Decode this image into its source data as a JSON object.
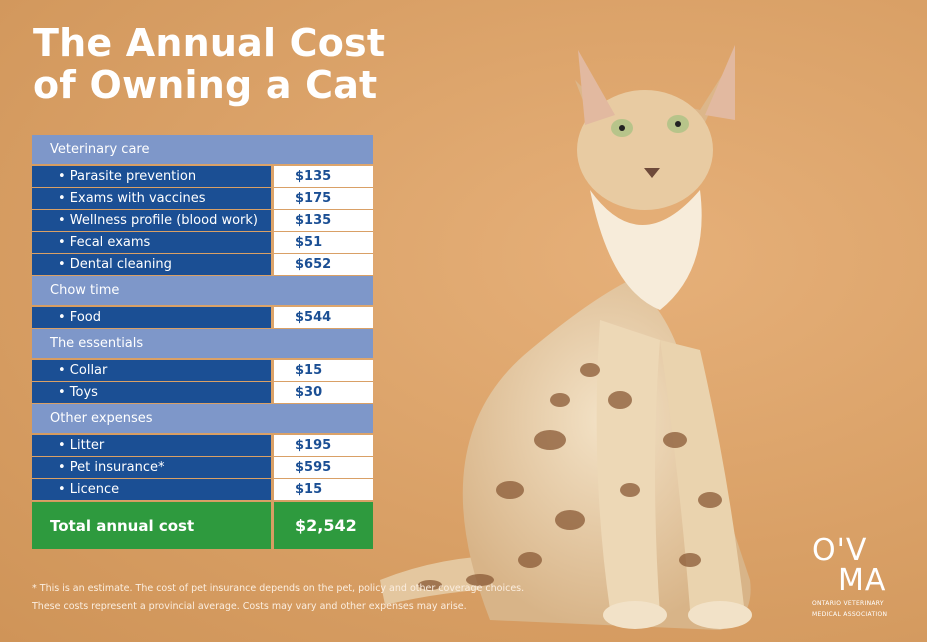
{
  "title": {
    "line1": "The Annual Cost",
    "line2": "of Owning a Cat"
  },
  "sections": [
    {
      "heading": "Veterinary care",
      "items": [
        {
          "label": "• Parasite prevention",
          "value": "$135"
        },
        {
          "label": "• Exams with vaccines",
          "value": "$175"
        },
        {
          "label": "• Wellness profile (blood work)",
          "value": "$135"
        },
        {
          "label": "• Fecal exams",
          "value": "$51"
        },
        {
          "label": "• Dental cleaning",
          "value": "$652"
        }
      ]
    },
    {
      "heading": "Chow time",
      "items": [
        {
          "label": "• Food",
          "value": "$544"
        }
      ]
    },
    {
      "heading": "The essentials",
      "items": [
        {
          "label": "• Collar",
          "value": "$15"
        },
        {
          "label": "• Toys",
          "value": "$30"
        }
      ]
    },
    {
      "heading": "Other expenses",
      "items": [
        {
          "label": "• Litter",
          "value": "$195"
        },
        {
          "label": "• Pet insurance*",
          "value": "$595"
        },
        {
          "label": "• Licence",
          "value": "$15"
        }
      ]
    }
  ],
  "total": {
    "label": "Total annual cost",
    "value": "$2,542"
  },
  "footnotes": {
    "line1": "* This is an estimate. The cost of pet insurance depends on the pet, policy and other coverage choices.",
    "line2": "These costs represent a provincial average. Costs may vary and other expenses may arise."
  },
  "logo": {
    "mark_top": "O'V",
    "mark_bottom": "MA",
    "org_line1": "ONTARIO VETERINARY",
    "org_line2": "MEDICAL ASSOCIATION"
  },
  "colors": {
    "background": "#d9a066",
    "header_blue": "#7e97c9",
    "row_blue": "#1b4f94",
    "total_green": "#2e9a3e"
  }
}
